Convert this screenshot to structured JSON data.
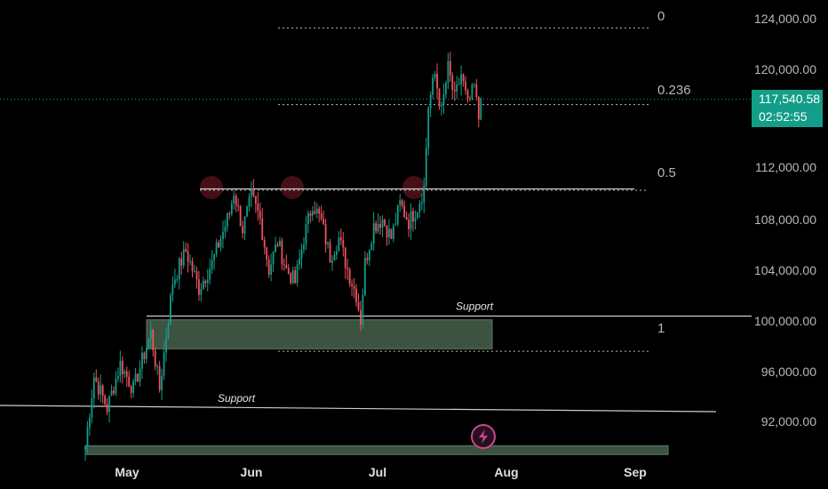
{
  "chart_data": {
    "type": "candlestick",
    "x_axis": {
      "ticks": [
        "May",
        "Jun",
        "Jul",
        "Aug",
        "Sep"
      ]
    },
    "y_axis": {
      "ticks": [
        "92,000.00",
        "96,000.00",
        "100,000.00",
        "104,000.00",
        "108,000.00",
        "112,000.00",
        "120,000.00",
        "124,000.00"
      ],
      "range": [
        89500,
        125500
      ]
    },
    "last_price": {
      "value": "117,540.58",
      "countdown": "02:52:55",
      "color": "#129e88"
    },
    "fib_levels": [
      {
        "label": "0",
        "price": 123200
      },
      {
        "label": "0.236",
        "price": 117100
      },
      {
        "label": "0.5",
        "price": 110300
      },
      {
        "label": "1",
        "price": 97500
      }
    ],
    "annotations": [
      {
        "text": "Support",
        "kind": "horizontal_line",
        "price": 100300
      },
      {
        "text": "Support",
        "kind": "sloped_line",
        "from_price": 93400,
        "to_price": 92700
      }
    ],
    "zones": [
      {
        "kind": "support_box",
        "from_price": 100000,
        "to_price": 97700,
        "color": "#3d5240"
      },
      {
        "kind": "support_box",
        "from_price": 90000,
        "to_price": 89300,
        "color": "#3d5240"
      }
    ],
    "series_anchors": [
      [
        0,
        90000
      ],
      [
        4,
        95500
      ],
      [
        10,
        93000
      ],
      [
        16,
        96500
      ],
      [
        22,
        94500
      ],
      [
        30,
        99000
      ],
      [
        34,
        94500
      ],
      [
        40,
        103000
      ],
      [
        46,
        105500
      ],
      [
        52,
        102500
      ],
      [
        58,
        104500
      ],
      [
        62,
        106500
      ],
      [
        66,
        108500
      ],
      [
        68,
        110200
      ],
      [
        72,
        107200
      ],
      [
        76,
        109800
      ],
      [
        80,
        108000
      ],
      [
        84,
        104000
      ],
      [
        88,
        106200
      ],
      [
        92,
        104000
      ],
      [
        96,
        103000
      ],
      [
        100,
        106500
      ],
      [
        104,
        109300
      ],
      [
        108,
        107800
      ],
      [
        112,
        105000
      ],
      [
        116,
        106500
      ],
      [
        120,
        104000
      ],
      [
        124,
        102000
      ],
      [
        126,
        100000
      ],
      [
        128,
        104500
      ],
      [
        132,
        107500
      ],
      [
        136,
        108000
      ],
      [
        140,
        106500
      ],
      [
        144,
        109200
      ],
      [
        148,
        107800
      ],
      [
        152,
        109000
      ],
      [
        155,
        110500
      ],
      [
        157,
        117000
      ],
      [
        160,
        119500
      ],
      [
        163,
        116500
      ],
      [
        166,
        120000
      ],
      [
        169,
        117500
      ],
      [
        172,
        119500
      ],
      [
        175,
        117000
      ],
      [
        178,
        118500
      ],
      [
        180,
        116000
      ],
      [
        181,
        117540
      ]
    ],
    "colors": {
      "up": "#129e88",
      "down": "#f0525e",
      "grid": "#444",
      "text": "#b8b8b8",
      "line": "#cccccc"
    }
  },
  "icons": {
    "lightning": "lightning-icon"
  }
}
